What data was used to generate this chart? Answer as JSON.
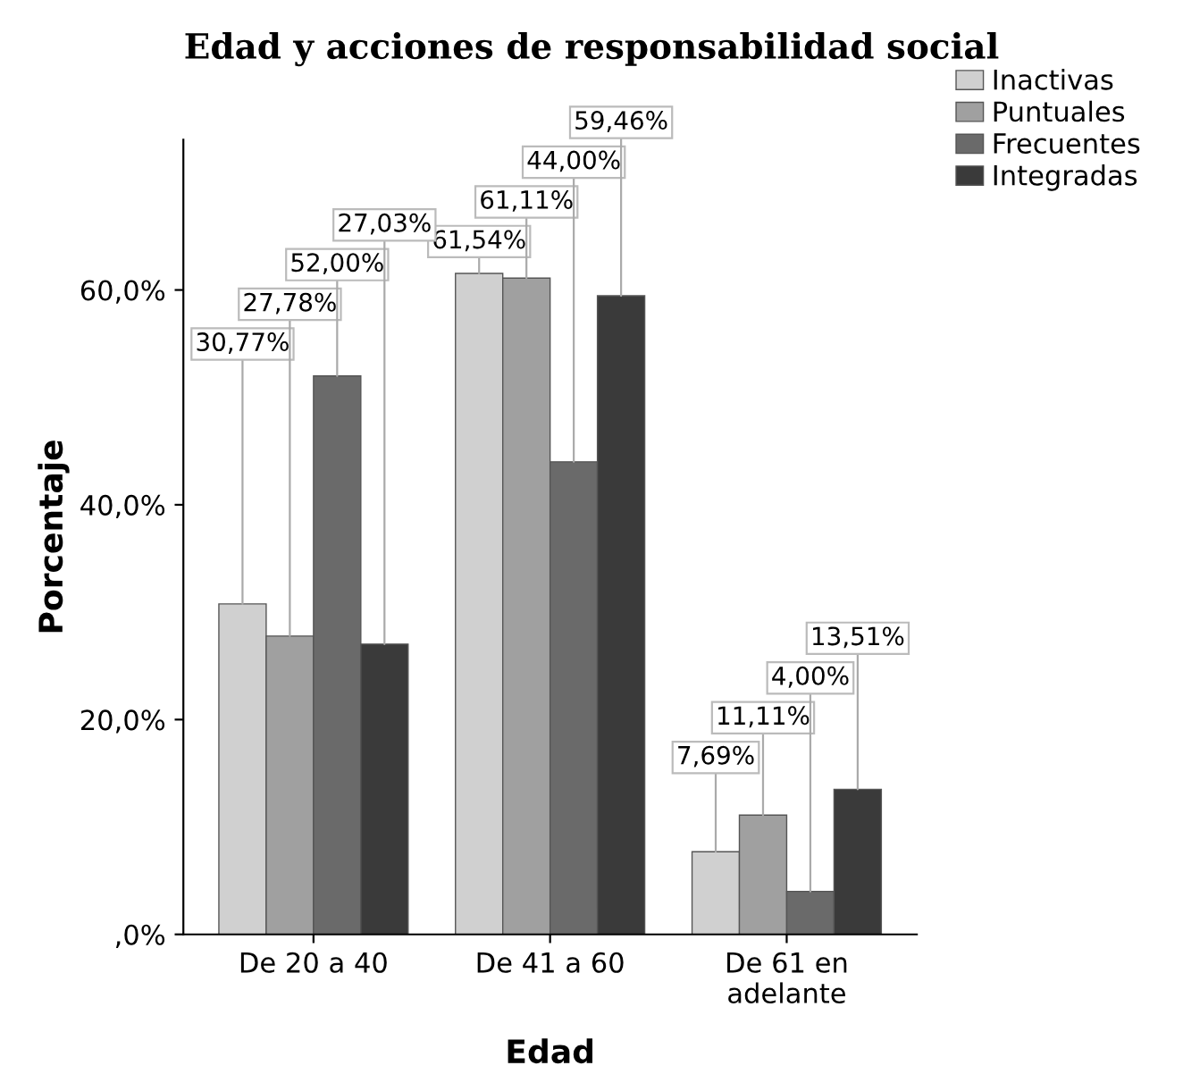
{
  "chart_data": {
    "type": "bar",
    "title": "Edad y acciones de responsabilidad social",
    "xlabel": "Edad",
    "ylabel": "Porcentaje",
    "categories": [
      "De 20 a 40",
      "De 41 a 60",
      "De 61 en\nadelante"
    ],
    "series": [
      {
        "name": "Inactivas",
        "color": "#d0d0d0",
        "values": [
          30.77,
          61.54,
          7.69
        ],
        "value_labels": [
          "30,77%",
          "61,54%",
          "7,69%"
        ]
      },
      {
        "name": "Puntuales",
        "color": "#a0a0a0",
        "values": [
          27.78,
          61.11,
          11.11
        ],
        "value_labels": [
          "27,78%",
          "61,11%",
          "11,11%"
        ]
      },
      {
        "name": "Frecuentes",
        "color": "#6a6a6a",
        "values": [
          52.0,
          44.0,
          4.0
        ],
        "value_labels": [
          "52,00%",
          "44,00%",
          "4,00%"
        ]
      },
      {
        "name": "Integradas",
        "color": "#3a3a3a",
        "values": [
          27.03,
          59.46,
          13.51
        ],
        "value_labels": [
          "27,03%",
          "59,46%",
          "13,51%"
        ]
      }
    ],
    "ylim": [
      0,
      74
    ],
    "yticks": [
      {
        "value": 0,
        "label": ",0%"
      },
      {
        "value": 20,
        "label": "20,0%"
      },
      {
        "value": 40,
        "label": "40,0%"
      },
      {
        "value": 60,
        "label": "60,0%"
      }
    ],
    "grid": false,
    "legend": "top right"
  }
}
